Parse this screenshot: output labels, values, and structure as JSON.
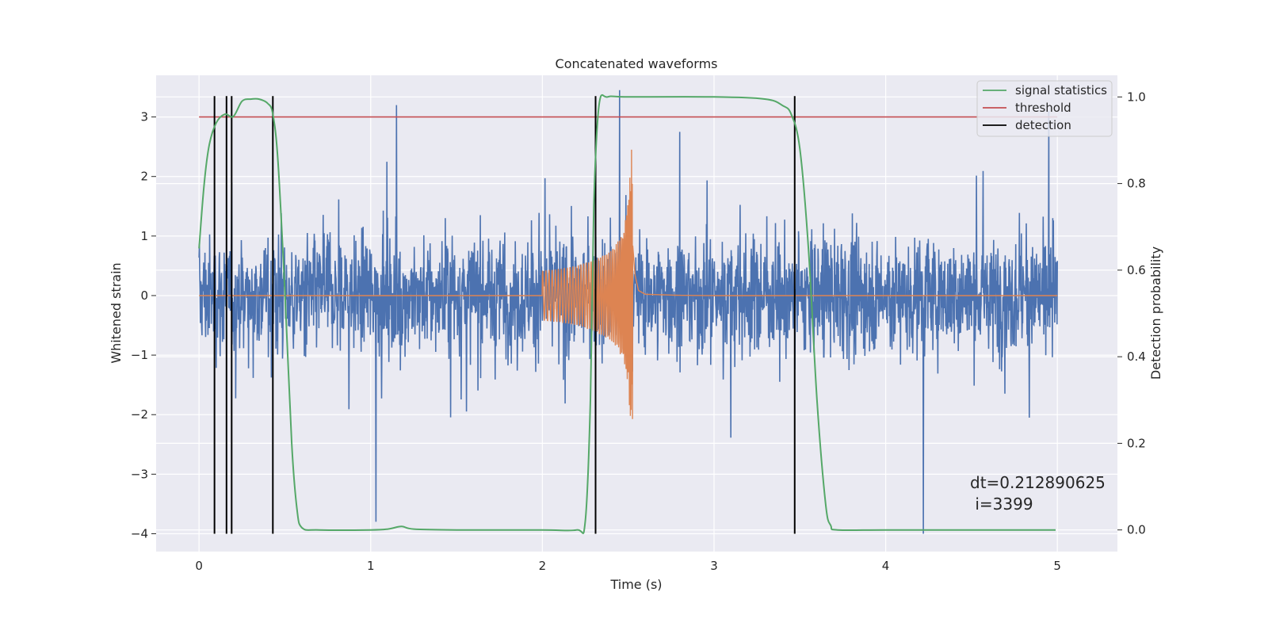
{
  "chart_data": {
    "type": "line",
    "title": "Concatenated waveforms",
    "xlabel": "Time (s)",
    "ylabel": "Whitened strain",
    "y2label": "Detection probability",
    "xlim": [
      -0.25,
      5.35
    ],
    "ylim": [
      -4.3,
      3.7
    ],
    "y2lim": [
      -0.05,
      1.05
    ],
    "x_ticks": [
      0,
      1,
      2,
      3,
      4,
      5
    ],
    "y_ticks": [
      -4,
      -3,
      -2,
      -1,
      0,
      1,
      2,
      3
    ],
    "y2_ticks": [
      0.0,
      0.2,
      0.4,
      0.6,
      0.8,
      1.0
    ],
    "x_tick_labels": [
      "0",
      "1",
      "2",
      "3",
      "4",
      "5"
    ],
    "y_tick_labels": [
      "−4",
      "−3",
      "−2",
      "−1",
      "0",
      "1",
      "2",
      "3"
    ],
    "y2_tick_labels": [
      "0.0",
      "0.2",
      "0.4",
      "0.6",
      "0.8",
      "1.0"
    ],
    "grid": true,
    "legend_position": "top-right",
    "colors": {
      "plot_background": "#eaeaf2",
      "grid": "#ffffff",
      "noise": "#4c72b0",
      "injected_signal": "#dd8452",
      "signal_statistics": "#55a868",
      "threshold": "#c44e52",
      "detection": "#000000"
    },
    "series": [
      {
        "name": "signal statistics",
        "axis": "right",
        "x": [
          0.0,
          0.03,
          0.06,
          0.1,
          0.15,
          0.2,
          0.25,
          0.3,
          0.35,
          0.4,
          0.43,
          0.46,
          0.5,
          0.54,
          0.57,
          0.6,
          0.7,
          1.0,
          1.1,
          1.18,
          1.25,
          1.5,
          2.0,
          2.2,
          2.25,
          2.28,
          2.3,
          2.33,
          2.38,
          2.5,
          3.0,
          3.3,
          3.4,
          3.45,
          3.5,
          3.55,
          3.6,
          3.65,
          3.68,
          3.72,
          4.0,
          4.5,
          4.99
        ],
        "y": [
          0.65,
          0.8,
          0.89,
          0.94,
          0.96,
          0.955,
          0.99,
          0.995,
          0.995,
          0.985,
          0.96,
          0.85,
          0.55,
          0.2,
          0.05,
          0.005,
          0.0,
          0.0,
          0.002,
          0.008,
          0.002,
          0.0,
          0.0,
          0.0,
          0.02,
          0.3,
          0.75,
          0.98,
          1.0,
          1.0,
          1.0,
          0.995,
          0.98,
          0.96,
          0.88,
          0.65,
          0.3,
          0.06,
          0.01,
          0.0,
          0.0,
          0.0,
          0.0
        ]
      },
      {
        "name": "threshold",
        "axis": "left",
        "x": [
          0.0,
          5.0
        ],
        "y": [
          3.0,
          3.0
        ]
      },
      {
        "name": "detection",
        "axis": "left",
        "x": [
          0.09,
          0.16,
          0.19,
          0.43,
          2.31,
          3.47
        ],
        "y_range": [
          -4.0,
          3.35
        ]
      },
      {
        "name": "",
        "axis": "left",
        "description_role": "whitened noise",
        "x_range": [
          0.0,
          5.0
        ],
        "amplitude_envelope": 1.4,
        "peak_outliers": [
          [
            1.15,
            3.2
          ],
          [
            1.03,
            -3.8
          ],
          [
            4.22,
            -4.0
          ],
          [
            2.45,
            3.45
          ],
          [
            4.95,
            3.1
          ],
          [
            2.8,
            2.75
          ]
        ]
      },
      {
        "name": "",
        "axis": "left",
        "description_role": "injected chirp",
        "x": [
          2.0,
          2.1,
          2.2,
          2.3,
          2.4,
          2.45,
          2.48,
          2.5,
          2.52,
          2.54,
          2.56,
          2.6,
          2.8,
          3.0
        ],
        "envelope": [
          0.42,
          0.45,
          0.5,
          0.6,
          0.75,
          0.95,
          1.2,
          1.6,
          2.5,
          0.8,
          0.2,
          0.05,
          0.01,
          0.0
        ]
      }
    ],
    "annotation": "dt=0.212890625\n i=3399",
    "annotation_lines": [
      "dt=0.212890625",
      " i=3399"
    ]
  }
}
